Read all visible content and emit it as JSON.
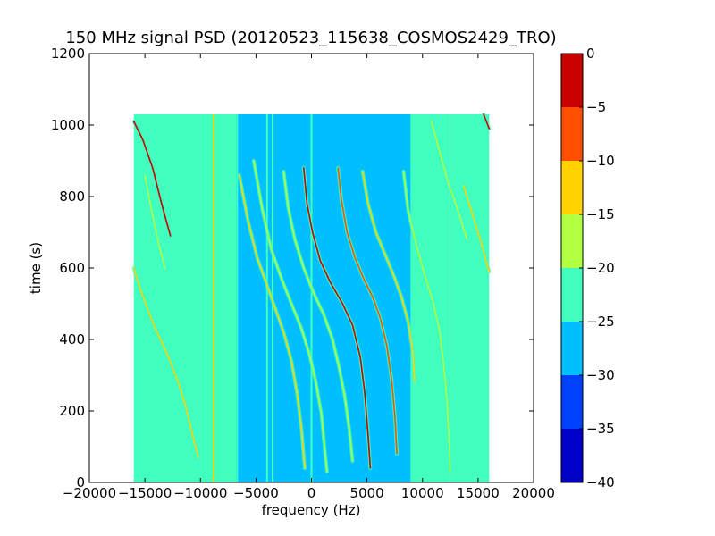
{
  "chart_data": {
    "type": "heatmap",
    "title": "150 MHz signal PSD (20120523_115638_COSMOS2429_TRO)",
    "xlabel": "frequency (Hz)",
    "ylabel": "time (s)",
    "xlim": [
      -20000,
      20000
    ],
    "ylim": [
      0,
      1200
    ],
    "xticks": [
      -20000,
      -15000,
      -10000,
      -5000,
      0,
      5000,
      10000,
      15000,
      20000
    ],
    "xtick_labels": [
      "−20000",
      "−15000",
      "−10000",
      "−5000",
      "0",
      "5000",
      "10000",
      "15000",
      "20000"
    ],
    "yticks": [
      0,
      200,
      400,
      600,
      800,
      1000,
      1200
    ],
    "ytick_labels": [
      "0",
      "200",
      "400",
      "600",
      "800",
      "1000",
      "1200"
    ],
    "data_extent": {
      "x": [
        -16000,
        16000
      ],
      "y": [
        0,
        1030
      ]
    },
    "regions": [
      {
        "x": [
          -16000,
          -6800
        ],
        "level": -22.5
      },
      {
        "x": [
          -6800,
          9000
        ],
        "level": -27.5
      },
      {
        "x": [
          9000,
          12500
        ],
        "level": -25
      },
      {
        "x": [
          12500,
          16000
        ],
        "level": -22.5
      }
    ],
    "vertical_lines": [
      {
        "x": -8800,
        "y": [
          0,
          1030
        ],
        "level": -15
      },
      {
        "x": -6700,
        "y": [
          0,
          1030
        ],
        "level": -22.5
      },
      {
        "x": -3500,
        "y": [
          0,
          1030
        ],
        "level": -22.5
      },
      {
        "x": -4000,
        "y": [
          0,
          1030
        ],
        "level": -22.5
      },
      {
        "x": 0,
        "y": [
          0,
          1030
        ],
        "level": -22.5
      },
      {
        "x": 9000,
        "y": [
          0,
          1030
        ],
        "level": -22.5
      },
      {
        "x": 11600,
        "y": [
          0,
          1030
        ],
        "level": -22.5
      }
    ],
    "tracks": [
      {
        "points": [
          [
            -16000,
            1010
          ],
          [
            -15200,
            960
          ],
          [
            -14300,
            880
          ],
          [
            -13500,
            780
          ],
          [
            -12700,
            690
          ]
        ],
        "level": -5
      },
      {
        "points": [
          [
            -16000,
            600
          ],
          [
            -15300,
            530
          ],
          [
            -14200,
            440
          ],
          [
            -13000,
            360
          ],
          [
            -12000,
            280
          ],
          [
            -11300,
            210
          ],
          [
            -10700,
            130
          ],
          [
            -10200,
            70
          ]
        ],
        "level": -15
      },
      {
        "points": [
          [
            -15000,
            860
          ],
          [
            -14400,
            760
          ],
          [
            -13700,
            660
          ],
          [
            -13200,
            600
          ]
        ],
        "level": -20
      },
      {
        "points": [
          [
            -6500,
            860
          ],
          [
            -5700,
            730
          ],
          [
            -4900,
            630
          ],
          [
            -4100,
            560
          ],
          [
            -3300,
            490
          ],
          [
            -2500,
            420
          ],
          [
            -1800,
            340
          ],
          [
            -1300,
            250
          ],
          [
            -900,
            150
          ],
          [
            -600,
            40
          ]
        ],
        "level": -15
      },
      {
        "points": [
          [
            -5200,
            900
          ],
          [
            -4400,
            760
          ],
          [
            -3600,
            650
          ],
          [
            -2700,
            570
          ],
          [
            -1800,
            500
          ],
          [
            -900,
            430
          ],
          [
            -200,
            360
          ],
          [
            400,
            280
          ],
          [
            900,
            190
          ],
          [
            1200,
            90
          ],
          [
            1400,
            30
          ]
        ],
        "level": -18
      },
      {
        "points": [
          [
            -2500,
            870
          ],
          [
            -2100,
            770
          ],
          [
            -1500,
            680
          ],
          [
            -700,
            600
          ],
          [
            200,
            530
          ],
          [
            1100,
            470
          ],
          [
            1900,
            400
          ],
          [
            2500,
            320
          ],
          [
            3000,
            240
          ],
          [
            3400,
            150
          ],
          [
            3700,
            60
          ]
        ],
        "level": -18
      },
      {
        "points": [
          [
            -700,
            880
          ],
          [
            -400,
            780
          ],
          [
            100,
            700
          ],
          [
            800,
            620
          ],
          [
            1700,
            560
          ],
          [
            2800,
            500
          ],
          [
            3700,
            440
          ],
          [
            4400,
            350
          ],
          [
            4800,
            250
          ],
          [
            5100,
            130
          ],
          [
            5300,
            40
          ]
        ],
        "level": -2
      },
      {
        "points": [
          [
            2400,
            880
          ],
          [
            2700,
            790
          ],
          [
            3200,
            700
          ],
          [
            3900,
            630
          ],
          [
            4700,
            570
          ],
          [
            5500,
            520
          ],
          [
            6200,
            460
          ],
          [
            6800,
            380
          ],
          [
            7200,
            290
          ],
          [
            7500,
            190
          ],
          [
            7700,
            80
          ]
        ],
        "level": -10
      },
      {
        "points": [
          [
            4600,
            870
          ],
          [
            5100,
            780
          ],
          [
            5800,
            700
          ],
          [
            6600,
            640
          ],
          [
            7400,
            580
          ],
          [
            8100,
            520
          ],
          [
            8700,
            450
          ],
          [
            9100,
            370
          ],
          [
            9300,
            280
          ]
        ],
        "level": -12
      },
      {
        "points": [
          [
            8300,
            870
          ],
          [
            8700,
            760
          ],
          [
            9400,
            670
          ],
          [
            10100,
            590
          ],
          [
            10900,
            510
          ],
          [
            11500,
            430
          ],
          [
            11900,
            330
          ],
          [
            12200,
            230
          ],
          [
            12400,
            110
          ],
          [
            12500,
            30
          ]
        ],
        "level": -18
      },
      {
        "points": [
          [
            10800,
            1010
          ],
          [
            11500,
            930
          ],
          [
            12300,
            840
          ],
          [
            13200,
            760
          ],
          [
            14000,
            680
          ]
        ],
        "level": -20
      },
      {
        "points": [
          [
            13700,
            830
          ],
          [
            14400,
            760
          ],
          [
            15200,
            680
          ],
          [
            15800,
            610
          ],
          [
            16000,
            590
          ]
        ],
        "level": -15
      },
      {
        "points": [
          [
            15500,
            1030
          ],
          [
            16000,
            990
          ]
        ],
        "level": -5
      }
    ],
    "colorbar": {
      "levels": [
        -40,
        -35,
        -30,
        -25,
        -20,
        -15,
        -10,
        -5,
        0
      ],
      "tick_labels": [
        "−40",
        "−35",
        "−30",
        "−25",
        "−20",
        "−15",
        "−10",
        "−5",
        "0"
      ],
      "colors": [
        "#0000c8",
        "#0040ff",
        "#00bfff",
        "#40ffbf",
        "#b0ff40",
        "#ffd200",
        "#ff5000",
        "#c80000"
      ]
    }
  }
}
